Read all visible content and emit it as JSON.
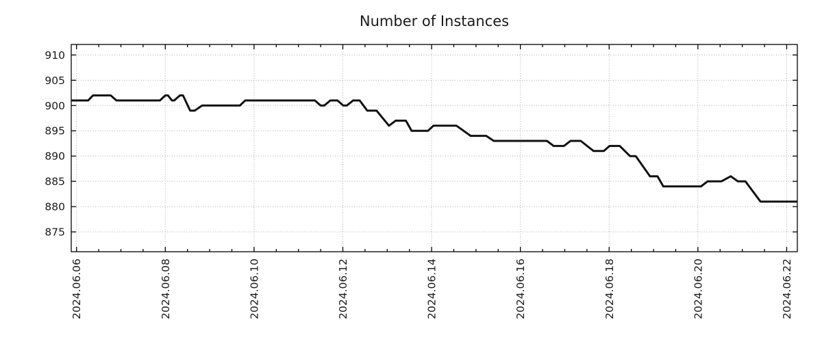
{
  "title": "Number of Instances",
  "colors": {
    "line": "#111111",
    "grid": "#a6a6a6",
    "axis": "#000000",
    "text": "#1a1a1a",
    "background": "#ffffff"
  },
  "chart_data": {
    "type": "line",
    "title": "Number of Instances",
    "xlabel": "",
    "ylabel": "",
    "legend": "none",
    "grid": true,
    "grid_style": "dotted",
    "x_unit": "date (2024, June, fractional days)",
    "x_range_days": [
      5.881,
      22.24
    ],
    "y_range": [
      871.08,
      912.08
    ],
    "x_tick_days": [
      6,
      8,
      10,
      12,
      14,
      16,
      18,
      20,
      22
    ],
    "x_tick_labels": [
      "2024.06.06",
      "2024.06.08",
      "2024.06.10",
      "2024.06.12",
      "2024.06.14",
      "2024.06.16",
      "2024.06.18",
      "2024.06.20",
      "2024.06.22"
    ],
    "x_minor_step_days": 0.5,
    "y_ticks": [
      875,
      880,
      885,
      890,
      895,
      900,
      905,
      910
    ],
    "series": [
      {
        "name": "instances",
        "points": [
          [
            5.881,
            901
          ],
          [
            6.26,
            901
          ],
          [
            6.37,
            902
          ],
          [
            6.77,
            902
          ],
          [
            6.9,
            901
          ],
          [
            7.88,
            901
          ],
          [
            8.0,
            902
          ],
          [
            8.06,
            902
          ],
          [
            8.15,
            901
          ],
          [
            8.2,
            901
          ],
          [
            8.33,
            902
          ],
          [
            8.4,
            902
          ],
          [
            8.56,
            899
          ],
          [
            8.66,
            899
          ],
          [
            8.83,
            900
          ],
          [
            9.68,
            900
          ],
          [
            9.8,
            901
          ],
          [
            11.37,
            901
          ],
          [
            11.5,
            900
          ],
          [
            11.58,
            900
          ],
          [
            11.72,
            901
          ],
          [
            11.88,
            901
          ],
          [
            12.01,
            900
          ],
          [
            12.09,
            900
          ],
          [
            12.23,
            901
          ],
          [
            12.38,
            901
          ],
          [
            12.55,
            899
          ],
          [
            12.76,
            899
          ],
          [
            13.04,
            896
          ],
          [
            13.19,
            897
          ],
          [
            13.42,
            897
          ],
          [
            13.55,
            895
          ],
          [
            13.92,
            895
          ],
          [
            14.04,
            896
          ],
          [
            14.56,
            896
          ],
          [
            14.88,
            894
          ],
          [
            15.23,
            894
          ],
          [
            15.4,
            893
          ],
          [
            16.6,
            893
          ],
          [
            16.75,
            892
          ],
          [
            16.98,
            892
          ],
          [
            17.13,
            893
          ],
          [
            17.36,
            893
          ],
          [
            17.65,
            891
          ],
          [
            17.88,
            891
          ],
          [
            18.01,
            892
          ],
          [
            18.24,
            892
          ],
          [
            18.47,
            890
          ],
          [
            18.6,
            890
          ],
          [
            18.92,
            886
          ],
          [
            19.09,
            886
          ],
          [
            19.22,
            884
          ],
          [
            20.07,
            884
          ],
          [
            20.22,
            885
          ],
          [
            20.53,
            885
          ],
          [
            20.74,
            886
          ],
          [
            20.9,
            885
          ],
          [
            21.07,
            885
          ],
          [
            21.41,
            881
          ],
          [
            22.24,
            881
          ]
        ]
      }
    ]
  }
}
